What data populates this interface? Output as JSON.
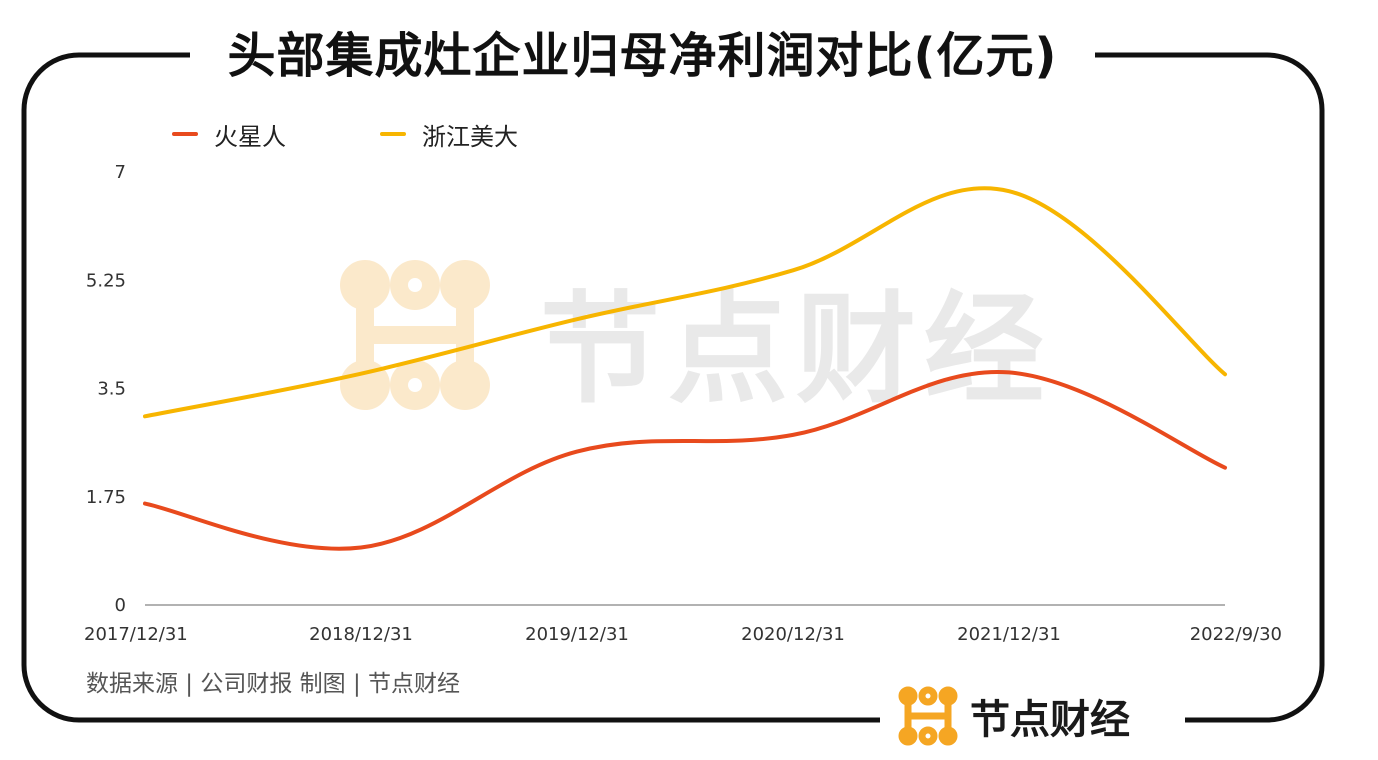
{
  "title": "头部集成灶企业归母净利润对比(亿元)",
  "colors": {
    "huoxingren": "#e84a1d",
    "zhejiangmeida": "#f7b500",
    "brand_orange": "#f5a623",
    "frame": "#111111",
    "axis": "#999999"
  },
  "chart_data": {
    "type": "line",
    "title": "头部集成灶企业归母净利润对比(亿元)",
    "xlabel": "",
    "ylabel": "",
    "categories": [
      "2017/12/31",
      "2018/12/31",
      "2019/12/31",
      "2020/12/31",
      "2021/12/31",
      "2022/9/30"
    ],
    "series": [
      {
        "name": "火星人",
        "color": "#e84a1d",
        "values": [
          1.64,
          0.93,
          2.48,
          2.75,
          3.76,
          2.22
        ]
      },
      {
        "name": "浙江美大",
        "color": "#f7b500",
        "values": [
          3.05,
          3.74,
          4.62,
          5.41,
          6.69,
          3.73
        ]
      }
    ],
    "ylim": [
      0,
      7
    ],
    "yticks": [
      "0",
      "1.75",
      "3.5",
      "5.25",
      "7"
    ],
    "grid": false,
    "legend_position": "top-left"
  },
  "source": "数据来源 | 公司财报  制图 | 节点财经",
  "brand": {
    "name": "节点财经",
    "logo_icon": "node-logo-icon"
  },
  "watermark": {
    "text": "节点财经",
    "icon": "node-logo-icon"
  }
}
